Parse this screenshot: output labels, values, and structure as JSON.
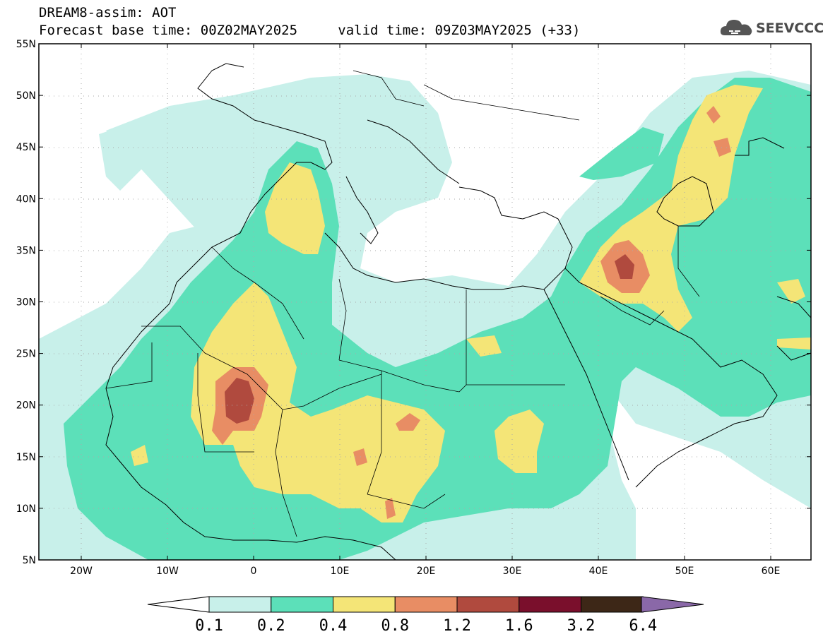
{
  "header": {
    "model_line": "DREAM8-assim: AOT",
    "base_time": "Forecast base time: 00Z02MAY2025",
    "valid_time": "valid time: 09Z03MAY2025 (+33)"
  },
  "logo": {
    "text": "SEEVCCC",
    "icon": "cloud-icon"
  },
  "axes": {
    "lat_labels": [
      "55N",
      "50N",
      "45N",
      "40N",
      "35N",
      "30N",
      "25N",
      "20N",
      "15N",
      "10N",
      "5N"
    ],
    "lon_labels": [
      "20W",
      "10W",
      "0",
      "10E",
      "20E",
      "30E",
      "40E",
      "50E",
      "60E"
    ]
  },
  "colorbar": {
    "labels": [
      "0.1",
      "0.2",
      "0.4",
      "0.8",
      "1.2",
      "1.6",
      "3.2",
      "6.4"
    ],
    "colors": [
      "#c8f0ea",
      "#5ce0b9",
      "#f4e577",
      "#e88d64",
      "#b04a3e",
      "#7a0f2c",
      "#3d2717",
      "#8a68a8"
    ]
  }
}
